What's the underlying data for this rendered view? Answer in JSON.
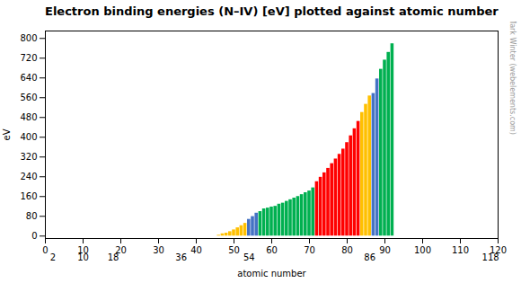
{
  "chart_data": {
    "type": "bar",
    "title": "Electron binding energies (N–IV) [eV] plotted against atomic number",
    "xlabel": "atomic number",
    "ylabel": "eV",
    "annotations": [
      "© Mark Winter (webelements.com)"
    ],
    "x": [
      46,
      47,
      48,
      49,
      50,
      51,
      52,
      53,
      54,
      55,
      56,
      57,
      58,
      59,
      60,
      61,
      62,
      63,
      64,
      65,
      66,
      67,
      68,
      69,
      70,
      71,
      72,
      73,
      74,
      75,
      76,
      77,
      78,
      79,
      80,
      81,
      82,
      83,
      84,
      85,
      86,
      87,
      88,
      89,
      90,
      91,
      92
    ],
    "values": [
      3.3,
      9.0,
      11.7,
      17.7,
      24.9,
      33.3,
      41.9,
      51.3,
      67.5,
      78.8,
      92.6,
      99.0,
      110.0,
      113.2,
      117.5,
      120.4,
      129.0,
      133.2,
      140.5,
      147.0,
      153.6,
      160.0,
      167.6,
      175.5,
      182.4,
      195.0,
      220.0,
      237.9,
      255.9,
      273.9,
      293.1,
      311.9,
      330.8,
      352.0,
      378.2,
      405.7,
      434.3,
      464.0,
      500.2,
      533.2,
      567.0,
      577.0,
      636.0,
      675.0,
      712.1,
      743.4,
      778.3
    ],
    "colors": [
      "#ffc000",
      "#ffc000",
      "#ffc000",
      "#ffc000",
      "#ffc000",
      "#ffc000",
      "#ffc000",
      "#ffc000",
      "#4472c4",
      "#4472c4",
      "#4472c4",
      "#00b050",
      "#00b050",
      "#00b050",
      "#00b050",
      "#00b050",
      "#00b050",
      "#00b050",
      "#00b050",
      "#00b050",
      "#00b050",
      "#00b050",
      "#00b050",
      "#00b050",
      "#00b050",
      "#00b050",
      "#ff0000",
      "#ff0000",
      "#ff0000",
      "#ff0000",
      "#ff0000",
      "#ff0000",
      "#ff0000",
      "#ff0000",
      "#ff0000",
      "#ff0000",
      "#ff0000",
      "#ff0000",
      "#ffc000",
      "#ffc000",
      "#ffc000",
      "#4472c4",
      "#4472c4",
      "#00b050",
      "#00b050",
      "#00b050",
      "#00b050"
    ],
    "xlim": [
      0,
      120
    ],
    "xticks": [
      0,
      10,
      20,
      30,
      40,
      50,
      60,
      70,
      80,
      90,
      100,
      110,
      120
    ],
    "x2ticks": [
      2,
      10,
      18,
      36,
      54,
      86,
      118
    ],
    "ylim": [
      -10,
      830
    ],
    "yticks": [
      0,
      80,
      160,
      240,
      320,
      400,
      480,
      560,
      640,
      720,
      800
    ],
    "grid": false
  }
}
